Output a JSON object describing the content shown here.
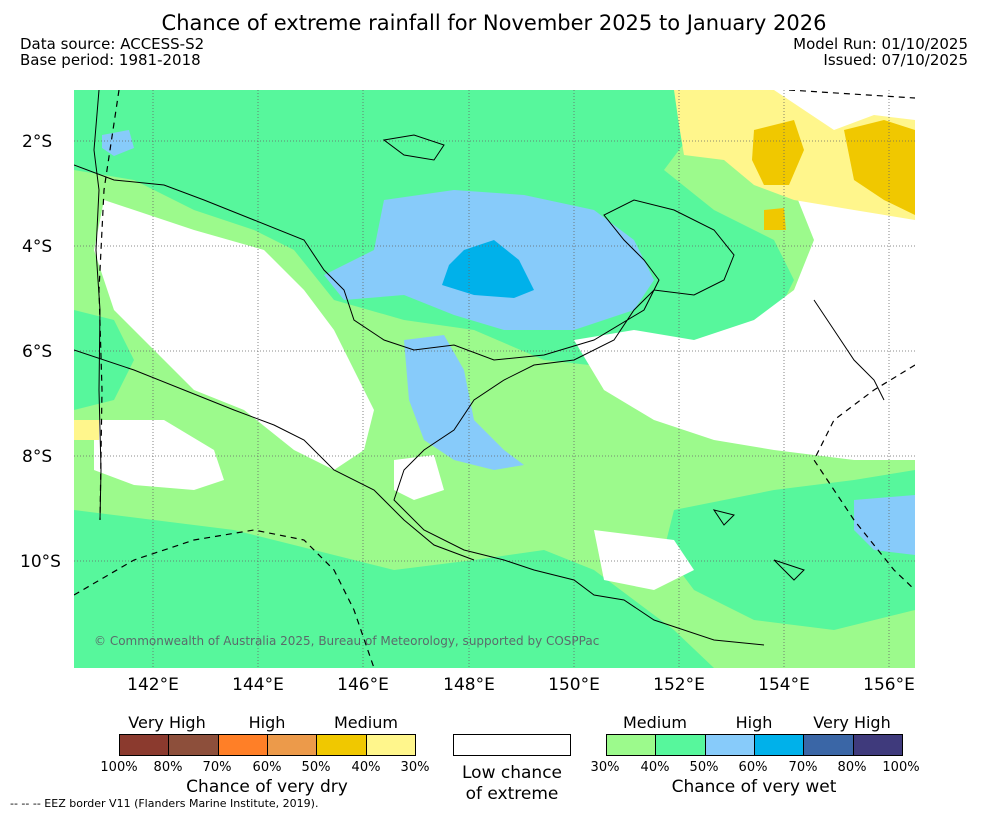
{
  "title": "Chance of extreme rainfall for November 2025 to January 2026",
  "meta": {
    "data_source": "Data source: ACCESS-S2",
    "base_period": "Base period: 1981-2018",
    "model_run": "Model Run: 01/10/2025",
    "issued": "Issued: 07/10/2025"
  },
  "axes": {
    "y_ticks": [
      "2°S",
      "4°S",
      "6°S",
      "8°S",
      "10°S"
    ],
    "x_ticks": [
      "142°E",
      "144°E",
      "146°E",
      "148°E",
      "150°E",
      "152°E",
      "154°E",
      "156°E"
    ]
  },
  "copyright": "© Commonwealth of Australia 2025, Bureau of Meteorology, supported by COSPPac",
  "legend": {
    "dry": {
      "categories": [
        "Very High",
        "High",
        "Medium"
      ],
      "percentages": [
        "100%",
        "80%",
        "70%",
        "60%",
        "50%",
        "40%",
        "30%"
      ],
      "colors": [
        "#8b3a2e",
        "#8d4f3b",
        "#ff7f27",
        "#ec9a4a",
        "#f0c800",
        "#fff68c"
      ],
      "title": "Chance of very dry"
    },
    "neutral": {
      "line1": "Low chance",
      "line2": "of extreme"
    },
    "wet": {
      "categories": [
        "Medium",
        "High",
        "Very High"
      ],
      "percentages": [
        "30%",
        "40%",
        "50%",
        "60%",
        "70%",
        "80%",
        "100%"
      ],
      "colors": [
        "#9cfa8c",
        "#57f79c",
        "#87cbfa",
        "#00b1ea",
        "#3a66a6",
        "#3f3a7c"
      ],
      "title": "Chance of very wet"
    }
  },
  "footer": "--  --  -- EEZ border V11 (Flanders Marine Institute, 2019)."
}
